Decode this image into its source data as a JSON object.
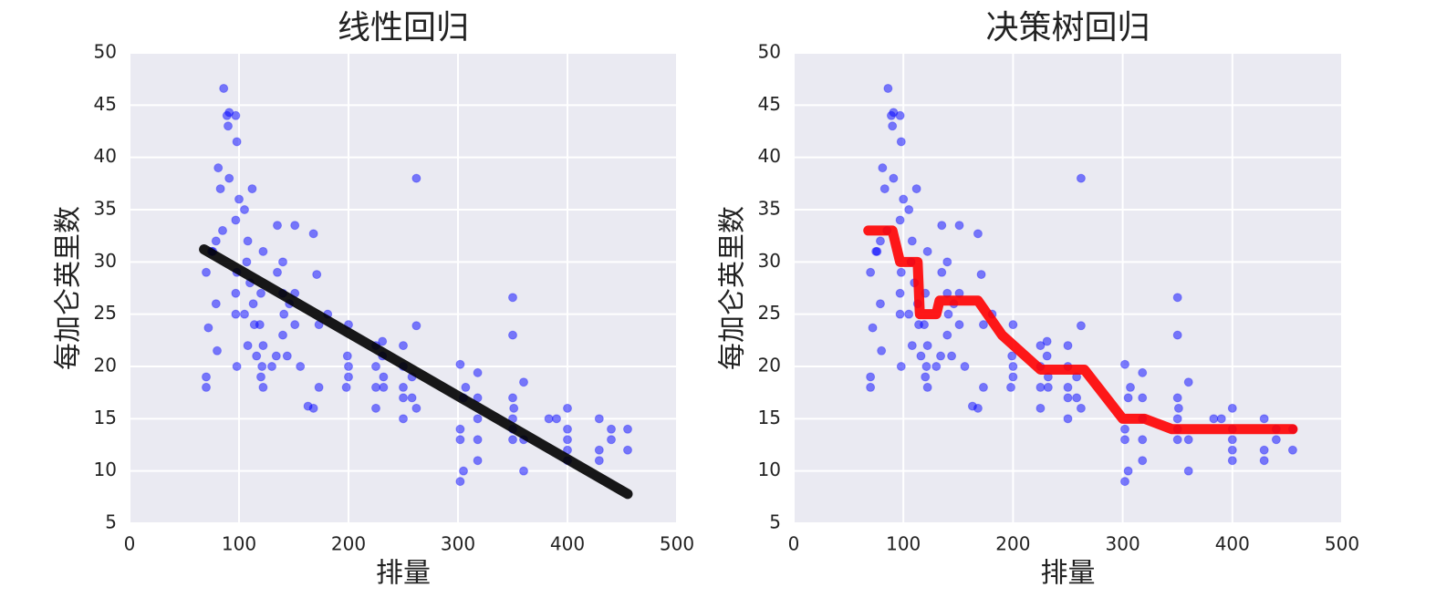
{
  "chart_data": [
    {
      "type": "scatter",
      "title": "线性回归",
      "xlabel": "排量",
      "ylabel": "每加仑英里数",
      "xlim": [
        0,
        500
      ],
      "ylim": [
        5,
        50
      ],
      "xticks": [
        0,
        100,
        200,
        300,
        400,
        500
      ],
      "yticks": [
        5,
        10,
        15,
        20,
        25,
        30,
        35,
        40,
        45,
        50
      ],
      "grid": true,
      "background": "#eaeaf2",
      "series": [
        {
          "type": "scatter",
          "color": "#0000ff",
          "x": [
            70,
            70,
            70,
            72,
            75,
            76,
            79,
            80,
            79,
            81,
            83,
            85,
            86,
            89,
            90,
            91,
            91,
            97,
            97,
            97,
            97,
            98,
            98,
            98,
            100,
            105,
            105,
            107,
            108,
            108,
            110,
            112,
            113,
            114,
            116,
            119,
            120,
            120,
            121,
            122,
            122,
            122,
            130,
            134,
            135,
            135,
            140,
            140,
            140,
            141,
            144,
            146,
            151,
            151,
            151,
            156,
            163,
            168,
            168,
            171,
            173,
            173,
            181,
            198,
            199,
            200,
            200,
            200,
            225,
            225,
            225,
            225,
            231,
            231,
            232,
            232,
            250,
            250,
            250,
            250,
            250,
            258,
            258,
            262,
            262,
            262,
            302,
            302,
            302,
            302,
            305,
            305,
            307,
            318,
            318,
            318,
            318,
            318,
            350,
            350,
            350,
            350,
            350,
            350,
            351,
            360,
            360,
            360,
            383,
            390,
            400,
            400,
            400,
            400,
            400,
            429,
            429,
            429,
            440,
            440,
            455,
            455
          ],
          "values": [
            29,
            18,
            19,
            23.7,
            31,
            31,
            26,
            21.5,
            32,
            39,
            37,
            33,
            46.6,
            44,
            43,
            38,
            44.3,
            44,
            34,
            27,
            25,
            20,
            29,
            41.5,
            36,
            25,
            35,
            30,
            32,
            22,
            28,
            37,
            26,
            24,
            21,
            24,
            27,
            19,
            20,
            22,
            18,
            31,
            20,
            21,
            33.5,
            29,
            23,
            30,
            27,
            25,
            21,
            26,
            27,
            24,
            33.5,
            20,
            16.2,
            32.7,
            16,
            28.8,
            18,
            24,
            25,
            18,
            21,
            24,
            20,
            19,
            18,
            20,
            16,
            22,
            22.4,
            21,
            19,
            18,
            18,
            15,
            22,
            20,
            17,
            19,
            17,
            38,
            23.9,
            16,
            20.2,
            14,
            13,
            9,
            10,
            17,
            18,
            11,
            13,
            15,
            19.4,
            17,
            26.6,
            23,
            17,
            14,
            15,
            13,
            16,
            10,
            18.5,
            13,
            15,
            15,
            16,
            14,
            13,
            11,
            12,
            15,
            11,
            12,
            13,
            14,
            14,
            12
          ]
        },
        {
          "type": "line",
          "color": "#000000",
          "x": [
            68,
            455
          ],
          "values": [
            31.2,
            7.8
          ]
        }
      ]
    },
    {
      "type": "scatter",
      "title": "决策树回归",
      "xlabel": "排量",
      "ylabel": "每加仑英里数",
      "xlim": [
        0,
        500
      ],
      "ylim": [
        5,
        50
      ],
      "xticks": [
        0,
        100,
        200,
        300,
        400,
        500
      ],
      "yticks": [
        5,
        10,
        15,
        20,
        25,
        30,
        35,
        40,
        45,
        50
      ],
      "grid": true,
      "background": "#eaeaf2",
      "series": [
        {
          "type": "scatter",
          "color": "#0000ff",
          "x": [
            70,
            70,
            70,
            72,
            75,
            76,
            79,
            80,
            79,
            81,
            83,
            85,
            86,
            89,
            90,
            91,
            91,
            97,
            97,
            97,
            97,
            98,
            98,
            98,
            100,
            105,
            105,
            107,
            108,
            108,
            110,
            112,
            113,
            114,
            116,
            119,
            120,
            120,
            121,
            122,
            122,
            122,
            130,
            134,
            135,
            135,
            140,
            140,
            140,
            141,
            144,
            146,
            151,
            151,
            151,
            156,
            163,
            168,
            168,
            171,
            173,
            173,
            181,
            198,
            199,
            200,
            200,
            200,
            225,
            225,
            225,
            225,
            231,
            231,
            232,
            232,
            250,
            250,
            250,
            250,
            250,
            258,
            258,
            262,
            262,
            262,
            302,
            302,
            302,
            302,
            305,
            305,
            307,
            318,
            318,
            318,
            318,
            318,
            350,
            350,
            350,
            350,
            350,
            350,
            351,
            360,
            360,
            360,
            383,
            390,
            400,
            400,
            400,
            400,
            400,
            429,
            429,
            429,
            440,
            440,
            455,
            455
          ],
          "values": [
            29,
            18,
            19,
            23.7,
            31,
            31,
            26,
            21.5,
            32,
            39,
            37,
            33,
            46.6,
            44,
            43,
            38,
            44.3,
            44,
            34,
            27,
            25,
            20,
            29,
            41.5,
            36,
            25,
            35,
            30,
            32,
            22,
            28,
            37,
            26,
            24,
            21,
            24,
            27,
            19,
            20,
            22,
            18,
            31,
            20,
            21,
            33.5,
            29,
            23,
            30,
            27,
            25,
            21,
            26,
            27,
            24,
            33.5,
            20,
            16.2,
            32.7,
            16,
            28.8,
            18,
            24,
            25,
            18,
            21,
            24,
            20,
            19,
            18,
            20,
            16,
            22,
            22.4,
            21,
            19,
            18,
            18,
            15,
            22,
            20,
            17,
            19,
            17,
            38,
            23.9,
            16,
            20.2,
            14,
            13,
            9,
            10,
            17,
            18,
            11,
            13,
            15,
            19.4,
            17,
            26.6,
            23,
            17,
            14,
            15,
            13,
            16,
            10,
            18.5,
            13,
            15,
            15,
            16,
            14,
            13,
            11,
            12,
            15,
            11,
            12,
            13,
            14,
            14,
            12
          ]
        },
        {
          "type": "line",
          "color": "#ff0000",
          "x": [
            68,
            90,
            97,
            113,
            115,
            130,
            133,
            168,
            190,
            225,
            265,
            300,
            320,
            345,
            455
          ],
          "values": [
            33,
            33,
            30,
            30,
            25,
            25,
            26.3,
            26.3,
            23,
            19.7,
            19.7,
            15,
            15,
            14,
            14
          ]
        }
      ]
    }
  ]
}
